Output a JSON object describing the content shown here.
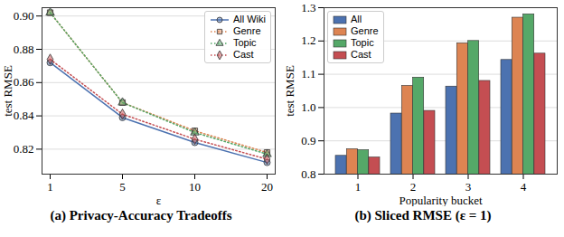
{
  "chart_data": [
    {
      "type": "line",
      "title": "(a) Privacy-Accuracy Tradeoffs",
      "x_label": "ε",
      "y_label": "test RMSE",
      "x": [
        1,
        5,
        10,
        20
      ],
      "ylim": [
        0.805,
        0.905
      ],
      "yticks": [
        0.82,
        0.84,
        0.86,
        0.88,
        {
          "value": 0.9,
          "label": "0.90"
        }
      ],
      "legend": "top-right",
      "series": [
        {
          "name": "All Wiki",
          "color": "#4c72b0",
          "marker": "circle",
          "line_style": "solid",
          "values": [
            0.872,
            0.839,
            0.824,
            0.812
          ]
        },
        {
          "name": "Genre",
          "color": "#dd8452",
          "marker": "square",
          "line_style": "dotted",
          "values": [
            0.902,
            0.848,
            0.831,
            0.818
          ]
        },
        {
          "name": "Topic",
          "color": "#55a868",
          "marker": "triangle",
          "line_style": "dotted",
          "values": [
            0.902,
            0.848,
            0.83,
            0.817
          ]
        },
        {
          "name": "Cast",
          "color": "#c44e52",
          "marker": "diamond",
          "line_style": "dotted",
          "values": [
            0.874,
            0.841,
            0.826,
            0.814
          ]
        }
      ]
    },
    {
      "type": "bar",
      "title": "(b) Sliced RMSE (ε = 1)",
      "x_label": "Popularity bucket",
      "y_label": "test RMSE",
      "categories": [
        1,
        2,
        3,
        4
      ],
      "ylim": [
        0.8,
        1.3
      ],
      "yticks": [
        0.8,
        0.9,
        {
          "value": 1.0,
          "label": "1.0"
        },
        1.1,
        1.2,
        1.3
      ],
      "legend": "top-left",
      "series": [
        {
          "name": "All",
          "color": "#4c72b0",
          "values": [
            0.855,
            0.982,
            1.063,
            1.143
          ]
        },
        {
          "name": "Genre",
          "color": "#dd8452",
          "values": [
            0.875,
            1.065,
            1.193,
            1.27
          ]
        },
        {
          "name": "Topic",
          "color": "#55a868",
          "values": [
            0.872,
            1.09,
            1.2,
            1.28
          ]
        },
        {
          "name": "Cast",
          "color": "#c44e52",
          "values": [
            0.85,
            0.99,
            1.08,
            1.162
          ]
        }
      ]
    }
  ]
}
